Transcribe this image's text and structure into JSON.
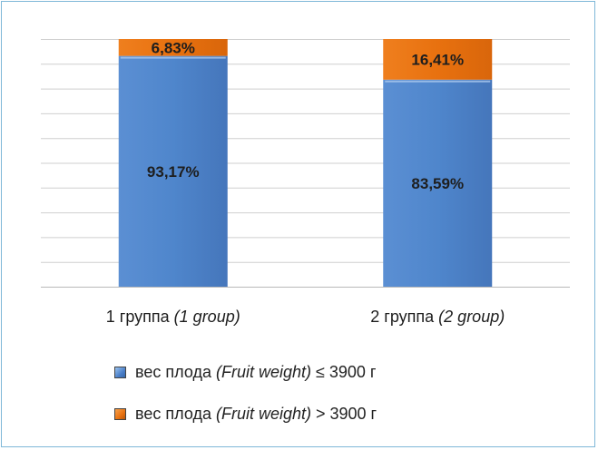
{
  "chart_data": {
    "type": "bar",
    "stacked": true,
    "categories": [
      "1 группа",
      "2 группа"
    ],
    "category_translations": [
      "(1 group)",
      "(2 group)"
    ],
    "series": [
      {
        "name": "вес плода (Fruit weight) ≤ 3900 г",
        "values": [
          93.17,
          83.59
        ],
        "labels": [
          "93,17%",
          "83,59%"
        ],
        "color": "#4f86cc"
      },
      {
        "name": "вес плода (Fruit weight) > 3900 г",
        "values": [
          6.83,
          16.41
        ],
        "labels": [
          "6,83%",
          "16,41%"
        ],
        "color": "#e8710f"
      }
    ],
    "ylim": [
      0,
      100
    ],
    "grid": true,
    "legend_position": "bottom",
    "legend": [
      {
        "prefix": "вес плода ",
        "italic": "(Fruit weight)",
        "suffix": " ≤ 3900 г",
        "swatch": "blue"
      },
      {
        "prefix": "вес плода ",
        "italic": "(Fruit weight)",
        "suffix": " > 3900 г",
        "swatch": "orange"
      }
    ]
  }
}
